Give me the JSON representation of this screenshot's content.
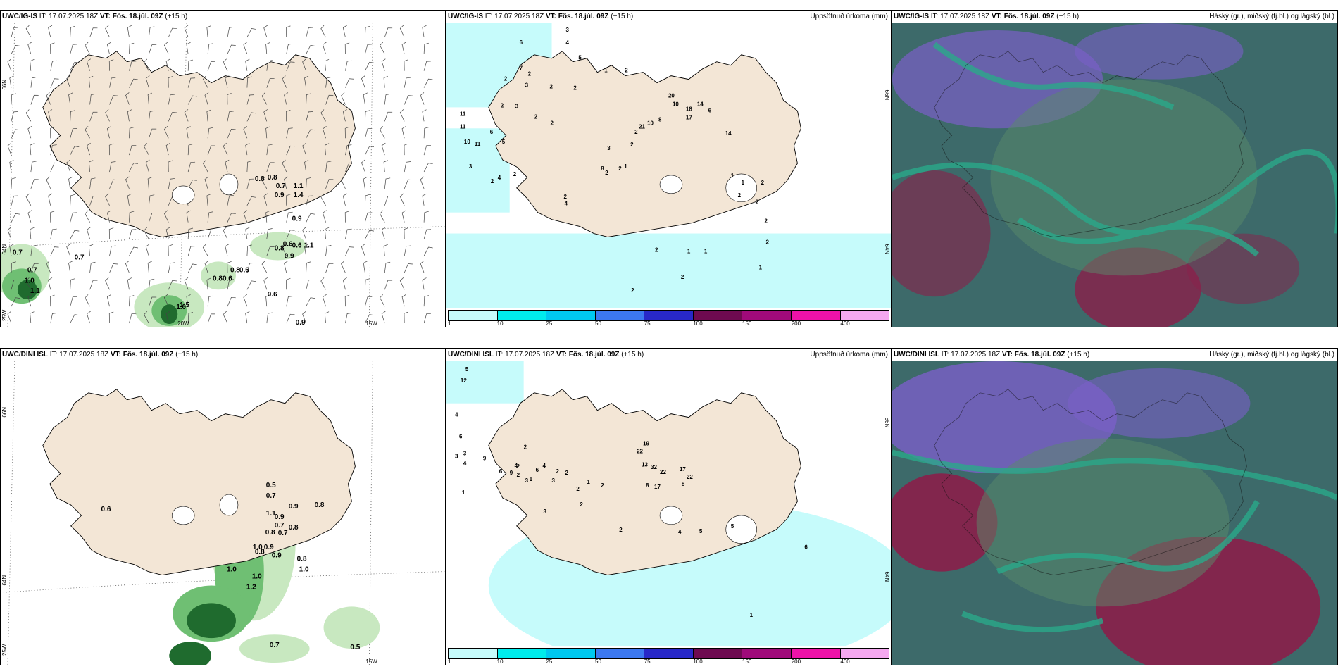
{
  "colors": {
    "land": "#f3e6d6",
    "precip_light": "#a8f0f0",
    "green_light": "#c8e8c0",
    "green_mid": "#6fbf73",
    "green_dark": "#1f6b2e",
    "cloud_base": "#3d6a6a",
    "cloud_low": "#2aa98a",
    "cloud_mid": "#7a5fc8",
    "cloud_high": "#8a1f4a"
  },
  "panels": {
    "top_left": {
      "model": "UWC/IG-IS",
      "it_label": "IT:",
      "it_value": "17.07.2025 18Z",
      "vt_label": "VT:",
      "vt_value": "Fös. 18.júl. 09Z",
      "lead": "(+15 h)",
      "title_right": "",
      "lat_labels": [
        "66N",
        "64N"
      ],
      "lon_labels": [
        "25W",
        "20W",
        "15W"
      ],
      "point_labels": [
        "0.8",
        "0.8",
        "0.7",
        "0.9",
        "1.1",
        "1.4",
        "0.9",
        "0.6",
        "0.8",
        "0.6",
        "1.1",
        "0.9",
        "0.7",
        "0.7",
        "0.7",
        "1.0",
        "1.1",
        "1.5",
        "0.8",
        "0.6",
        "0.8",
        "0.6",
        "1.0",
        "0.6",
        "0.9"
      ]
    },
    "top_middle": {
      "model": "UWC/IG-IS",
      "it_label": "IT:",
      "it_value": "17.07.2025 18Z",
      "vt_label": "VT:",
      "vt_value": "Fös. 18.júl. 09Z",
      "lead": "(+15 h)",
      "title_right": "Uppsöfnuð úrkoma (mm)",
      "lat_labels": [
        "66N",
        "64N"
      ],
      "point_labels": [
        "3",
        "6",
        "4",
        "5",
        "7",
        "2",
        "2",
        "3",
        "2",
        "2",
        "2",
        "3",
        "2",
        "2",
        "11",
        "11",
        "10",
        "11",
        "6",
        "5",
        "3",
        "4",
        "2",
        "2",
        "1",
        "2",
        "20",
        "10",
        "18",
        "14",
        "17",
        "6",
        "8",
        "21",
        "10",
        "14",
        "2",
        "2",
        "3",
        "8",
        "2",
        "1",
        "2",
        "2",
        "4",
        "1",
        "1",
        "2",
        "2",
        "2",
        "2",
        "2",
        "1",
        "1",
        "2",
        "1",
        "2",
        "2"
      ],
      "scale_ticks": [
        "1",
        "10",
        "25",
        "50",
        "75",
        "100",
        "150",
        "200",
        "400"
      ],
      "scale_colors": [
        "#c6fbfb",
        "#00ecec",
        "#00c8f0",
        "#3c78f0",
        "#2828c8",
        "#6e0a50",
        "#a00a7a",
        "#ee12a8",
        "#f5a8f0"
      ]
    },
    "top_right": {
      "model": "UWC/IG-IS",
      "it_label": "IT:",
      "it_value": "17.07.2025 18Z",
      "vt_label": "VT:",
      "vt_value": "Fös. 18.júl. 09Z",
      "lead": "(+15 h)",
      "title_right": "Háský (gr.), miðský (fj.bl.) og lágský (bl.)"
    },
    "bottom_left": {
      "model": "UWC/DINI ISL",
      "it_label": "IT:",
      "it_value": "17.07.2025 18Z",
      "vt_label": "VT:",
      "vt_value": "Fös. 18.júl. 09Z",
      "lead": "(+15 h)",
      "title_right": "",
      "lat_labels": [
        "66N",
        "64N"
      ],
      "lon_labels": [
        "25W",
        "15W"
      ],
      "point_labels": [
        "0.5",
        "0.7",
        "0.9",
        "0.8",
        "1.1",
        "0.9",
        "0.7",
        "0.8",
        "0.8",
        "0.7",
        "1.0",
        "0.9",
        "0.8",
        "0.9",
        "0.8",
        "1.0",
        "1.0",
        "1.0",
        "1.2",
        "0.6",
        "0.7",
        "0.5"
      ]
    },
    "bottom_middle": {
      "model": "UWC/DINI ISL",
      "it_label": "IT:",
      "it_value": "17.07.2025 18Z",
      "vt_label": "VT:",
      "vt_value": "Fös. 18.júl. 09Z",
      "lead": "(+15 h)",
      "title_right": "Uppsöfnuð úrkoma (mm)",
      "lat_labels": [
        "66N",
        "64N"
      ],
      "point_labels": [
        "5",
        "12",
        "4",
        "6",
        "3",
        "3",
        "4",
        "9",
        "6",
        "9",
        "1",
        "22",
        "19",
        "13",
        "32",
        "22",
        "17",
        "22",
        "8",
        "17",
        "8",
        "2",
        "2",
        "2",
        "3",
        "1",
        "4",
        "4",
        "6",
        "2",
        "2",
        "3",
        "2",
        "1",
        "2",
        "2",
        "3",
        "2",
        "4",
        "5",
        "5",
        "6",
        "1"
      ],
      "scale_ticks": [
        "1",
        "10",
        "25",
        "50",
        "75",
        "100",
        "150",
        "200",
        "400"
      ],
      "scale_colors": [
        "#c6fbfb",
        "#00ecec",
        "#00c8f0",
        "#3c78f0",
        "#2828c8",
        "#6e0a50",
        "#a00a7a",
        "#ee12a8",
        "#f5a8f0"
      ]
    },
    "bottom_right": {
      "model": "UWC/DINI ISL",
      "it_label": "IT:",
      "it_value": "17.07.2025 18Z",
      "vt_label": "VT:",
      "vt_value": "Fös. 18.júl. 09Z",
      "lead": "(+15 h)",
      "title_right": "Háský (gr.), miðský (fj.bl.) og lágský (bl.)"
    }
  }
}
